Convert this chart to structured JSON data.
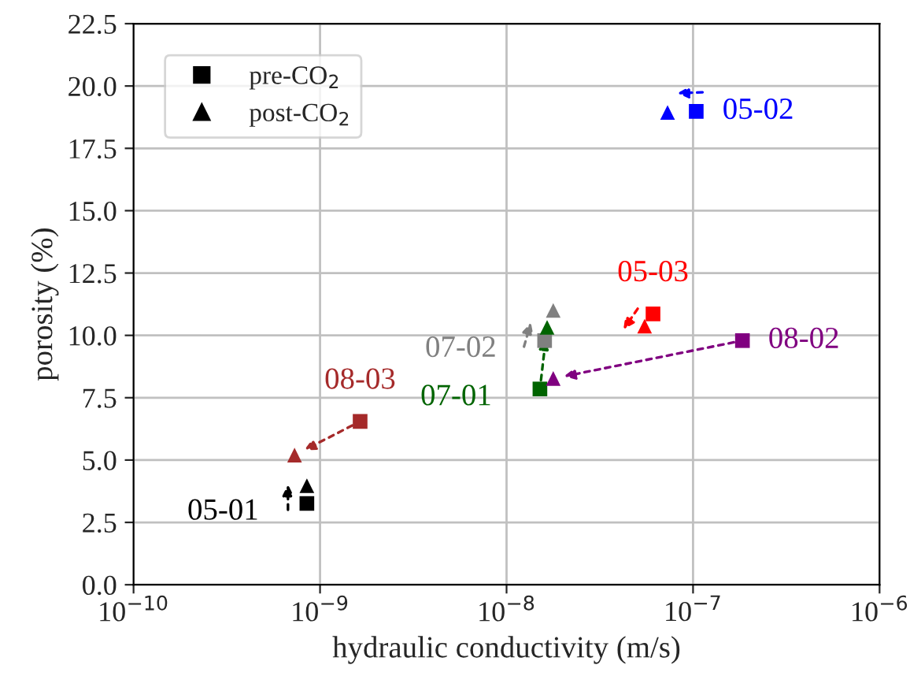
{
  "chart_data": {
    "type": "scatter",
    "xlabel": "hydraulic conductivity (m/s)",
    "ylabel": "porosity (%)",
    "log": "x",
    "grid": true,
    "legend": "top left",
    "xlim": [
      1e-10,
      1e-06
    ],
    "xticks": [
      {
        "value": 1e-10,
        "label": "10$^{−10}$"
      },
      {
        "value": 1e-09,
        "label": "10$^{−9}$"
      },
      {
        "value": 1e-08,
        "label": "10$^{−8}$"
      },
      {
        "value": 1e-07,
        "label": "10$^{−7}$"
      },
      {
        "value": 1e-06,
        "label": "10$^{−6}$"
      }
    ],
    "ylim": [
      0,
      22.5
    ],
    "yticks": [
      {
        "value": 0,
        "label": "0.0"
      },
      {
        "value": 2.5,
        "label": "2.5"
      },
      {
        "value": 5,
        "label": "5.0"
      },
      {
        "value": 7.5,
        "label": "7.5"
      },
      {
        "value": 10,
        "label": "10.0"
      },
      {
        "value": 12.5,
        "label": "12.5"
      },
      {
        "value": 15,
        "label": "15.0"
      },
      {
        "value": 17.5,
        "label": "17.5"
      },
      {
        "value": 20,
        "label": "20.0"
      },
      {
        "value": 22.5,
        "label": "22.5"
      }
    ],
    "series": [
      {
        "name": "pre-CO$_{2}$",
        "marker": "square",
        "x": [
          8.5e-10,
          1.04e-07,
          6.1e-08,
          1.51e-08,
          1.6e-08,
          1.84e-07,
          1.64e-09
        ],
        "values": [
          3.26,
          18.98,
          10.86,
          7.85,
          9.79,
          9.79,
          6.55
        ],
        "colors": [
          "#000000",
          "#0000ff",
          "#ff0000",
          "#006400",
          "#808080",
          "#800080",
          "#a52a2a"
        ]
      },
      {
        "name": "post-CO$_{2}$",
        "marker": "triangle",
        "x": [
          8.5e-10,
          7.3e-08,
          5.5e-08,
          1.65e-08,
          1.78e-08,
          1.78e-08,
          7.3e-10
        ],
        "values": [
          3.97,
          18.94,
          10.37,
          10.32,
          11.0,
          8.27,
          5.2
        ],
        "colors": [
          "#000000",
          "#0000ff",
          "#ff0000",
          "#006400",
          "#808080",
          "#800080",
          "#a52a2a"
        ]
      }
    ],
    "annotations": [
      "05-01",
      "05-02",
      "05-03",
      "07-01",
      "07-02",
      "08-02",
      "08-03"
    ]
  }
}
